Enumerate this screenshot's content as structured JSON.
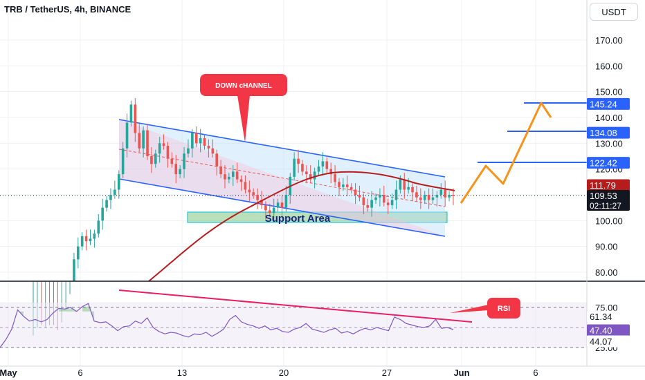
{
  "header": {
    "title": "TRB / TetherUS, 4h, BINANCE",
    "currency_button": "USDT"
  },
  "colors": {
    "up_candle": "#26a69a",
    "down_candle": "#ef5350",
    "ma_line": "#b71c1c",
    "channel": "#2962ff",
    "projection": "#f7931a",
    "rsi_line": "#7e57c2",
    "trendline": "#e91e63",
    "support_zone": "#81c784"
  },
  "annotations": {
    "down_channel_label": "DOWN cHANNEL",
    "support_label": "Support Area",
    "rsi_label": "RSI"
  },
  "chart_data": {
    "type": "candlestick",
    "price_axis": {
      "ticks": [
        "170.00",
        "160.00",
        "150.00",
        "140.00",
        "130.00",
        "120.00",
        "100.00",
        "90.00",
        "80.00"
      ],
      "ylim": [
        76,
        181
      ]
    },
    "x_axis": {
      "ticks": [
        "May",
        "6",
        "13",
        "20",
        "27",
        "Jun",
        "6"
      ]
    },
    "price_labels": {
      "target_3": "145.24",
      "target_2": "134.08",
      "target_1": "122.42",
      "ma_value": "111.79",
      "last_price": "109.53",
      "countdown": "02:11:27"
    },
    "levels": [
      122.42,
      134.08,
      145.24
    ],
    "last_price": 109.53,
    "ma_last": 111.79,
    "support_zone": [
      102,
      106
    ],
    "channel": {
      "upper": [
        [
          8.6,
          139
        ],
        [
          30.2,
          117
        ]
      ],
      "lower": [
        [
          8.6,
          116
        ],
        [
          30.2,
          94
        ]
      ]
    },
    "projection_path": [
      [
        31.3,
        107
      ],
      [
        32.6,
        121.5
      ],
      [
        33.7,
        114
      ],
      [
        36.2,
        145.5
      ],
      [
        36.9,
        141
      ]
    ],
    "approx_closes": [
      54,
      56,
      54,
      57,
      55,
      56,
      55,
      58,
      62,
      70,
      85,
      90,
      94,
      92,
      93,
      95,
      100,
      105,
      108,
      110,
      112,
      118,
      128,
      138,
      145,
      134,
      128,
      135,
      125,
      122,
      126,
      130,
      129,
      124,
      122,
      118,
      120,
      126,
      128,
      134,
      130,
      132,
      129,
      128,
      126,
      121,
      118,
      116,
      117,
      119,
      116,
      115,
      112,
      111,
      110,
      108,
      106,
      104,
      103,
      105,
      107,
      105,
      110,
      117,
      124,
      122,
      119,
      118,
      116,
      119,
      121,
      123,
      120,
      118,
      115,
      113,
      114,
      113,
      112,
      110,
      109,
      106,
      105,
      108,
      109,
      110,
      107,
      106,
      108,
      112,
      116,
      112,
      113,
      111,
      109,
      108,
      110,
      108,
      109,
      110,
      112,
      109,
      110,
      109.53
    ],
    "rsi": {
      "ticks": [
        "75.00",
        "25.00"
      ],
      "ylim": [
        20,
        85
      ],
      "labels": {
        "upper": "61.34",
        "current": "47.40",
        "lower": "44.07"
      },
      "levels": {
        "upper": 70,
        "middle": 50,
        "lower": 30
      },
      "current": 47.4,
      "approx_values": [
        25,
        35,
        48,
        72,
        64,
        58,
        60,
        57,
        60,
        68,
        74,
        73,
        75,
        70,
        76,
        80,
        58,
        56,
        57,
        52,
        46,
        51,
        52,
        58,
        55,
        62,
        50,
        45,
        42,
        44,
        43,
        40,
        38,
        42,
        41,
        44,
        39,
        43,
        48,
        60,
        65,
        57,
        54,
        52,
        49,
        52,
        47,
        49,
        45,
        44,
        48,
        50,
        55,
        48,
        46,
        44,
        47,
        49,
        43,
        45,
        42,
        46,
        49,
        47,
        50,
        48,
        46,
        63,
        60,
        55,
        53,
        51,
        50,
        52,
        60,
        49,
        50,
        47.4
      ]
    }
  }
}
